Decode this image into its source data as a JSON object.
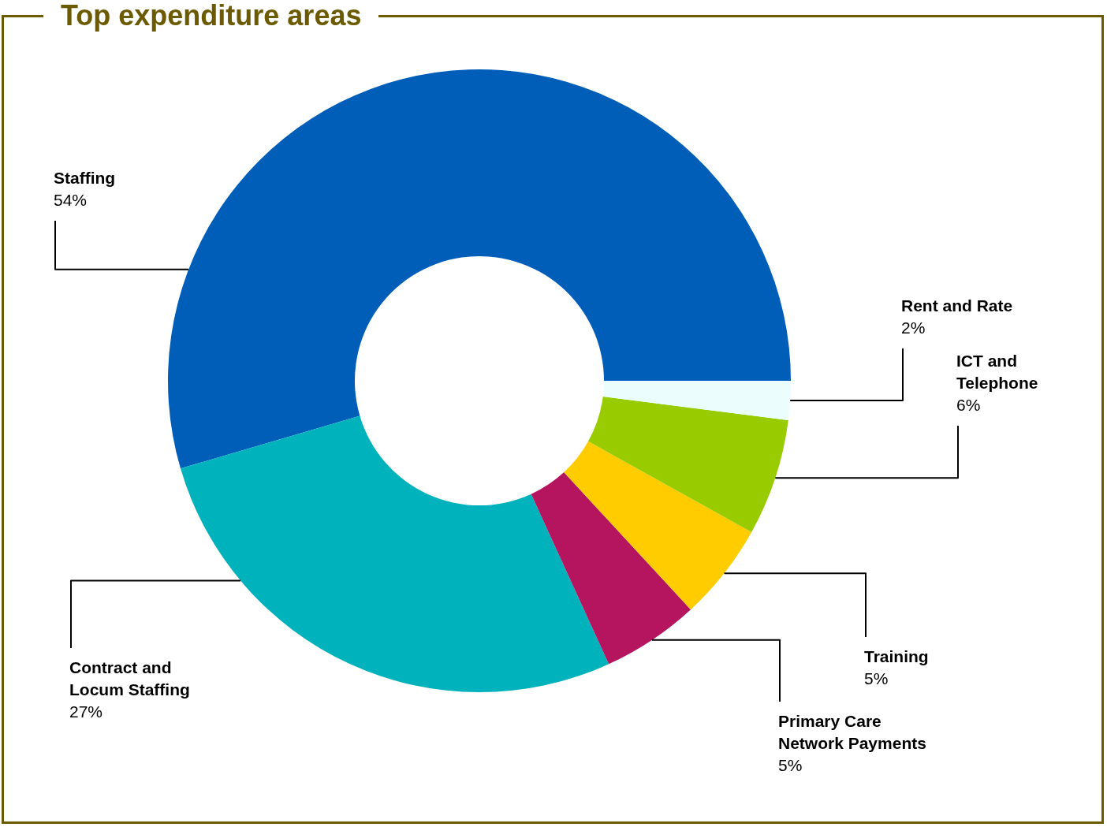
{
  "chart_data": {
    "type": "donut",
    "title": "Top expenditure areas",
    "categories": [
      "Staffing",
      "Contract and Locum Staffing",
      "Primary Care Network Payments",
      "Training",
      "ICT and Telephone",
      "Rent and Rate"
    ],
    "values": [
      54,
      27,
      5,
      5,
      6,
      2
    ],
    "value_labels": [
      "54%",
      "27%",
      "5%",
      "5%",
      "6%",
      "2%"
    ],
    "colors": [
      "#005eb8",
      "#00b2bb",
      "#b5145f",
      "#ffcc00",
      "#99cc00",
      "#ebfdfd"
    ]
  }
}
